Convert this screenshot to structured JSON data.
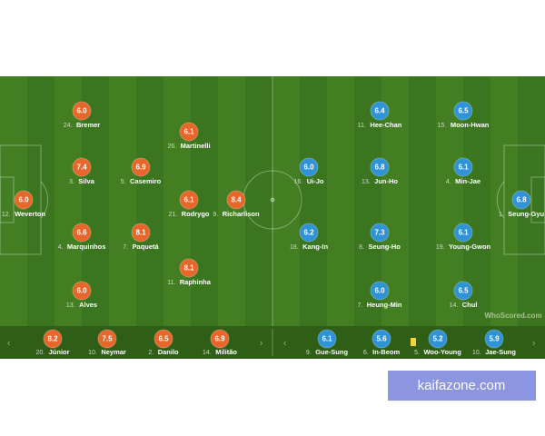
{
  "home": {
    "starters": [
      {
        "num": "12.",
        "name": "Weverton",
        "rating": "6.0"
      },
      {
        "num": "24.",
        "name": "Bremer",
        "rating": "6.0"
      },
      {
        "num": "3.",
        "name": "Silva",
        "rating": "7.4"
      },
      {
        "num": "4.",
        "name": "Marquinhos",
        "rating": "6.6"
      },
      {
        "num": "13.",
        "name": "Alves",
        "rating": "6.0"
      },
      {
        "num": "5.",
        "name": "Casemiro",
        "rating": "6.9"
      },
      {
        "num": "7.",
        "name": "Paquetá",
        "rating": "8.1"
      },
      {
        "num": "26.",
        "name": "Martinelli",
        "rating": "6.1"
      },
      {
        "num": "21.",
        "name": "Rodrygo",
        "rating": "6.1"
      },
      {
        "num": "11.",
        "name": "Raphinha",
        "rating": "8.1"
      },
      {
        "num": "9.",
        "name": "Richarlison",
        "rating": "8.4"
      }
    ],
    "subs": [
      {
        "num": "20.",
        "name": "Júnior",
        "rating": "8.2"
      },
      {
        "num": "10.",
        "name": "Neymar",
        "rating": "7.5"
      },
      {
        "num": "2.",
        "name": "Danilo",
        "rating": "6.5"
      },
      {
        "num": "14.",
        "name": "Militão",
        "rating": "6.9"
      }
    ]
  },
  "away": {
    "starters": [
      {
        "num": "1.",
        "name": "Seung-Gyu",
        "rating": "6.8"
      },
      {
        "num": "15.",
        "name": "Moon-Hwan",
        "rating": "6.5"
      },
      {
        "num": "4.",
        "name": "Min-Jae",
        "rating": "6.1"
      },
      {
        "num": "19.",
        "name": "Young-Gwon",
        "rating": "6.1"
      },
      {
        "num": "14.",
        "name": "Chul",
        "rating": "6.5"
      },
      {
        "num": "11.",
        "name": "Hee-Chan",
        "rating": "6.4"
      },
      {
        "num": "13.",
        "name": "Jun-Ho",
        "rating": "6.8"
      },
      {
        "num": "8.",
        "name": "Seung-Ho",
        "rating": "7.3"
      },
      {
        "num": "7.",
        "name": "Heung-Min",
        "rating": "6.0"
      },
      {
        "num": "16.",
        "name": "Ui-Jo",
        "rating": "6.0"
      },
      {
        "num": "18.",
        "name": "Kang-In",
        "rating": "6.2"
      }
    ],
    "subs": [
      {
        "num": "9.",
        "name": "Gue-Sung",
        "rating": "6.1"
      },
      {
        "num": "6.",
        "name": "In-Beom",
        "rating": "5.6"
      },
      {
        "num": "5.",
        "name": "Woo-Young",
        "rating": "5.2"
      },
      {
        "num": "10.",
        "name": "Jae-Sung",
        "rating": "5.9"
      }
    ]
  },
  "logo": "WhoScored.com",
  "watermark": "kaifazone.com"
}
